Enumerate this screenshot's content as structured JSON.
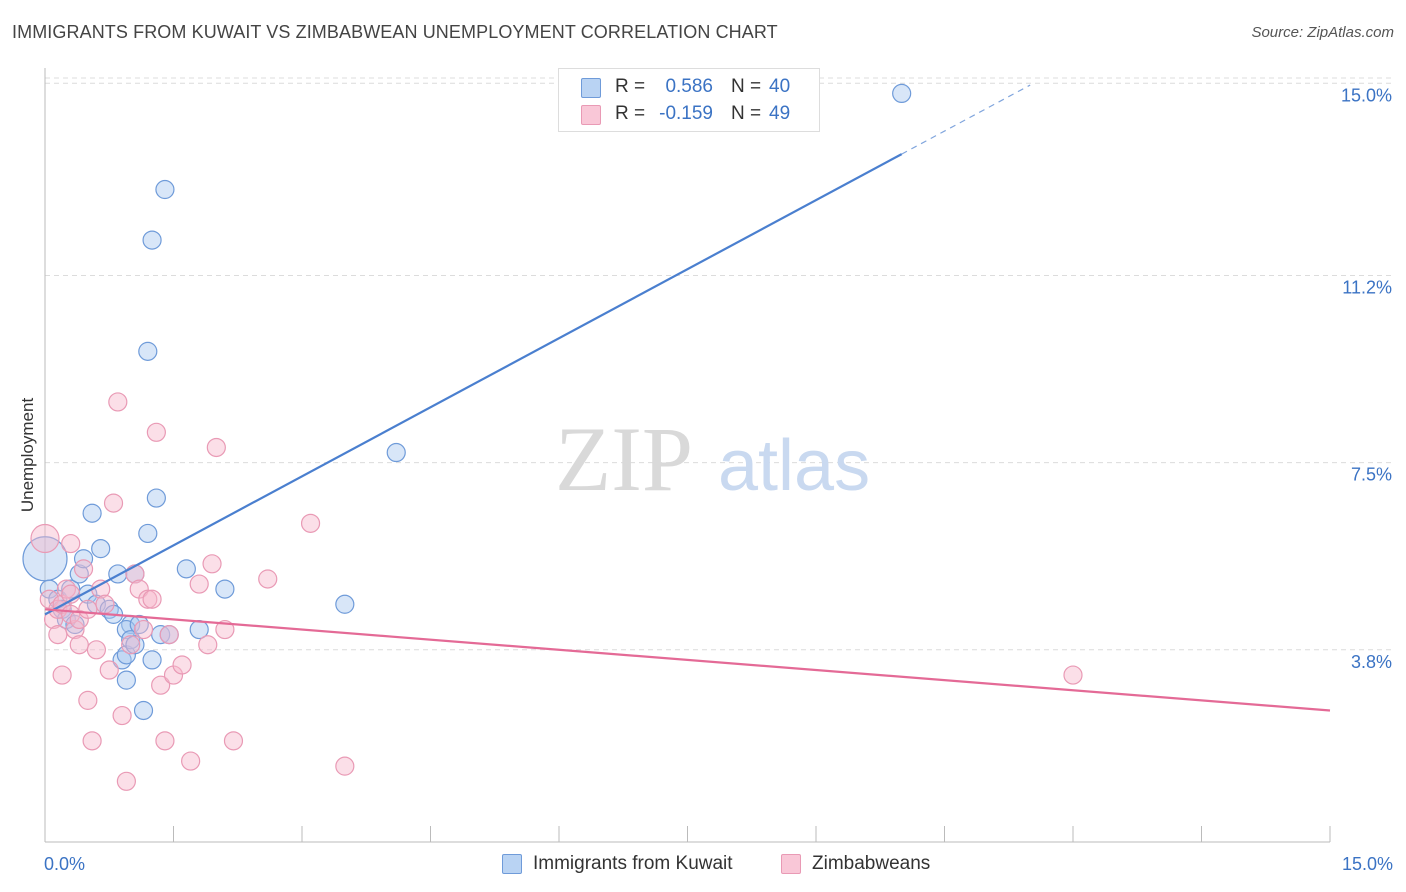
{
  "title": "IMMIGRANTS FROM KUWAIT VS ZIMBABWEAN UNEMPLOYMENT CORRELATION CHART",
  "source": "Source: ZipAtlas.com",
  "colors": {
    "blue": "#4a7fcf",
    "blue_fill": "#a9c8f0",
    "pink": "#e46a96",
    "pink_fill": "#f6b8cc",
    "value_text": "#3b73c4"
  },
  "legend": {
    "r_label": "R =",
    "n_label": "N =",
    "series": [
      {
        "name": "Immigrants from Kuwait",
        "r": "0.586",
        "n": "40"
      },
      {
        "name": "Zimbabweans",
        "r": "-0.159",
        "n": "49"
      }
    ]
  },
  "watermark": {
    "zip": "ZIP",
    "atlas": "atlas"
  },
  "chart_data": {
    "type": "scatter",
    "title": "IMMIGRANTS FROM KUWAIT VS ZIMBABWEAN UNEMPLOYMENT CORRELATION CHART",
    "xlabel": "",
    "ylabel": "Unemployment",
    "xlim": [
      0,
      15
    ],
    "ylim": [
      0,
      15.5
    ],
    "x_tick_labels": [
      "0.0%",
      "15.0%"
    ],
    "y_ticks": [
      3.8,
      7.5,
      11.2,
      15.0
    ],
    "y_tick_labels": [
      "3.8%",
      "7.5%",
      "11.2%",
      "15.0%"
    ],
    "grid": true,
    "series": [
      {
        "name": "Immigrants from Kuwait",
        "color": "#4a7fcf",
        "trend": {
          "x0": 0,
          "y0": 4.5,
          "x1": 10.0,
          "y1": 13.6,
          "dash_to_x": 11.5
        },
        "points": [
          [
            0.0,
            5.6,
            22
          ],
          [
            0.05,
            5.0,
            9
          ],
          [
            0.15,
            4.8,
            9
          ],
          [
            0.2,
            4.6,
            9
          ],
          [
            0.25,
            4.4,
            9
          ],
          [
            0.3,
            5.0,
            9
          ],
          [
            0.35,
            4.3,
            9
          ],
          [
            0.4,
            5.3,
            9
          ],
          [
            0.45,
            5.6,
            9
          ],
          [
            0.5,
            4.9,
            9
          ],
          [
            0.55,
            6.5,
            9
          ],
          [
            0.6,
            4.7,
            9
          ],
          [
            0.65,
            5.8,
            9
          ],
          [
            0.75,
            4.6,
            9
          ],
          [
            0.8,
            4.5,
            9
          ],
          [
            0.85,
            5.3,
            9
          ],
          [
            0.9,
            3.6,
            9
          ],
          [
            0.95,
            3.7,
            9
          ],
          [
            1.0,
            4.3,
            9
          ],
          [
            1.05,
            5.3,
            9
          ],
          [
            0.95,
            4.2,
            9
          ],
          [
            0.95,
            3.2,
            9
          ],
          [
            1.0,
            4.0,
            9
          ],
          [
            1.05,
            3.9,
            9
          ],
          [
            1.1,
            4.3,
            9
          ],
          [
            1.15,
            2.6,
            9
          ],
          [
            1.2,
            6.1,
            9
          ],
          [
            1.25,
            3.6,
            9
          ],
          [
            1.3,
            6.8,
            9
          ],
          [
            1.35,
            4.1,
            9
          ],
          [
            1.45,
            4.1,
            9
          ],
          [
            1.2,
            9.7,
            9
          ],
          [
            1.25,
            11.9,
            9
          ],
          [
            1.4,
            12.9,
            9
          ],
          [
            1.65,
            5.4,
            9
          ],
          [
            1.8,
            4.2,
            9
          ],
          [
            2.1,
            5.0,
            9
          ],
          [
            3.5,
            4.7,
            9
          ],
          [
            4.1,
            7.7,
            9
          ],
          [
            10.0,
            14.8,
            9
          ]
        ]
      },
      {
        "name": "Zimbabweans",
        "color": "#e46a96",
        "trend": {
          "x0": 0,
          "y0": 4.6,
          "x1": 15.0,
          "y1": 2.6
        },
        "points": [
          [
            0.0,
            6.0,
            14
          ],
          [
            0.05,
            4.8,
            9
          ],
          [
            0.1,
            4.4,
            9
          ],
          [
            0.15,
            4.6,
            9
          ],
          [
            0.2,
            4.7,
            9
          ],
          [
            0.15,
            4.1,
            9
          ],
          [
            0.25,
            5.0,
            9
          ],
          [
            0.3,
            5.9,
            9
          ],
          [
            0.3,
            4.9,
            9
          ],
          [
            0.35,
            4.2,
            9
          ],
          [
            0.4,
            3.9,
            9
          ],
          [
            0.45,
            5.4,
            9
          ],
          [
            0.5,
            2.8,
            9
          ],
          [
            0.55,
            2.0,
            9
          ],
          [
            0.6,
            3.8,
            9
          ],
          [
            0.65,
            5.0,
            9
          ],
          [
            0.7,
            4.7,
            9
          ],
          [
            0.75,
            3.4,
            9
          ],
          [
            0.8,
            6.7,
            9
          ],
          [
            0.85,
            8.7,
            9
          ],
          [
            0.9,
            2.5,
            9
          ],
          [
            1.0,
            3.9,
            9
          ],
          [
            1.05,
            5.3,
            9
          ],
          [
            1.1,
            5.0,
            9
          ],
          [
            0.95,
            1.2,
            9
          ],
          [
            1.15,
            4.2,
            9
          ],
          [
            1.2,
            4.8,
            9
          ],
          [
            1.25,
            4.8,
            9
          ],
          [
            1.3,
            8.1,
            9
          ],
          [
            1.35,
            3.1,
            9
          ],
          [
            1.4,
            2.0,
            9
          ],
          [
            1.45,
            4.1,
            9
          ],
          [
            1.5,
            3.3,
            9
          ],
          [
            1.6,
            3.5,
            9
          ],
          [
            1.7,
            1.6,
            9
          ],
          [
            1.8,
            5.1,
            9
          ],
          [
            1.9,
            3.9,
            9
          ],
          [
            1.95,
            5.5,
            9
          ],
          [
            2.0,
            7.8,
            9
          ],
          [
            2.1,
            4.2,
            9
          ],
          [
            2.2,
            2.0,
            9
          ],
          [
            2.6,
            5.2,
            9
          ],
          [
            3.1,
            6.3,
            9
          ],
          [
            3.5,
            1.5,
            9
          ],
          [
            12.0,
            3.3,
            9
          ],
          [
            0.2,
            3.3,
            9
          ],
          [
            0.3,
            4.5,
            9
          ],
          [
            0.4,
            4.4,
            9
          ],
          [
            0.5,
            4.6,
            9
          ]
        ]
      }
    ]
  }
}
